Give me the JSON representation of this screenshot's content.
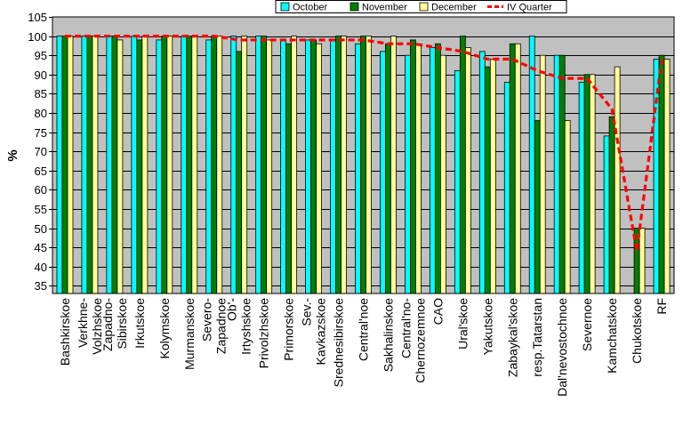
{
  "chart_data": {
    "type": "bar",
    "ylabel": "%",
    "ylim": [
      33,
      105
    ],
    "yticks": [
      35,
      40,
      45,
      50,
      55,
      60,
      65,
      70,
      75,
      80,
      85,
      90,
      95,
      100,
      105
    ],
    "grid": true,
    "legend_position": "top-right",
    "categories": [
      "Bashkirskoe",
      "Verkhne-\nVolzhskoe",
      "Zapadno-\nSibirskoe",
      "Irkutskoe",
      "Kolymskoe",
      "Murmanskoe",
      "Severo-\nZapadnoe",
      "Ob'-\nIrtyshskoe",
      "Privolzhskoe",
      "Primorskoe",
      "Sev.-\nKavkazskoe",
      "Srednesibirskoe",
      "Central'noe",
      "Sakhalinskoe",
      "Central'no-\nChernozemnoe",
      "CAO",
      "Ural'skoe",
      "Yakutskoe",
      "Zabaykal'skoe",
      "resp.Tatarstan",
      "Dal'nevostochnoe",
      "Severnoe",
      "Kamchatskoe",
      "Chukotskoe",
      "RF"
    ],
    "series": [
      {
        "name": "October",
        "type": "bar",
        "color": "#00ffff",
        "values": [
          100,
          100,
          100,
          100,
          99,
          100,
          99,
          100,
          100,
          99,
          99,
          99,
          98,
          96,
          95,
          97,
          91,
          96,
          88,
          100,
          95,
          88,
          74,
          33,
          94
        ]
      },
      {
        "name": "November",
        "type": "bar",
        "color": "#008000",
        "values": [
          100,
          100,
          100,
          99,
          100,
          100,
          100,
          96,
          100,
          98,
          99,
          100,
          100,
          98,
          99,
          98,
          100,
          92,
          98,
          78,
          95,
          90,
          79,
          50,
          95
        ]
      },
      {
        "name": "December",
        "type": "bar",
        "color": "#ffff99",
        "values": [
          100,
          100,
          99,
          100,
          100,
          100,
          100,
          100,
          99,
          100,
          98,
          100,
          100,
          100,
          98,
          95,
          97,
          94,
          98,
          95,
          78,
          90,
          92,
          50,
          94
        ]
      },
      {
        "name": "IV Quarter",
        "type": "line",
        "style": "dashed",
        "color": "#ff0000",
        "values": [
          100,
          100,
          100,
          100,
          100,
          100,
          100,
          99,
          99,
          99,
          99,
          99,
          99,
          98,
          98,
          97,
          96,
          94,
          94,
          91,
          89,
          89,
          81,
          44,
          94
        ]
      }
    ]
  }
}
